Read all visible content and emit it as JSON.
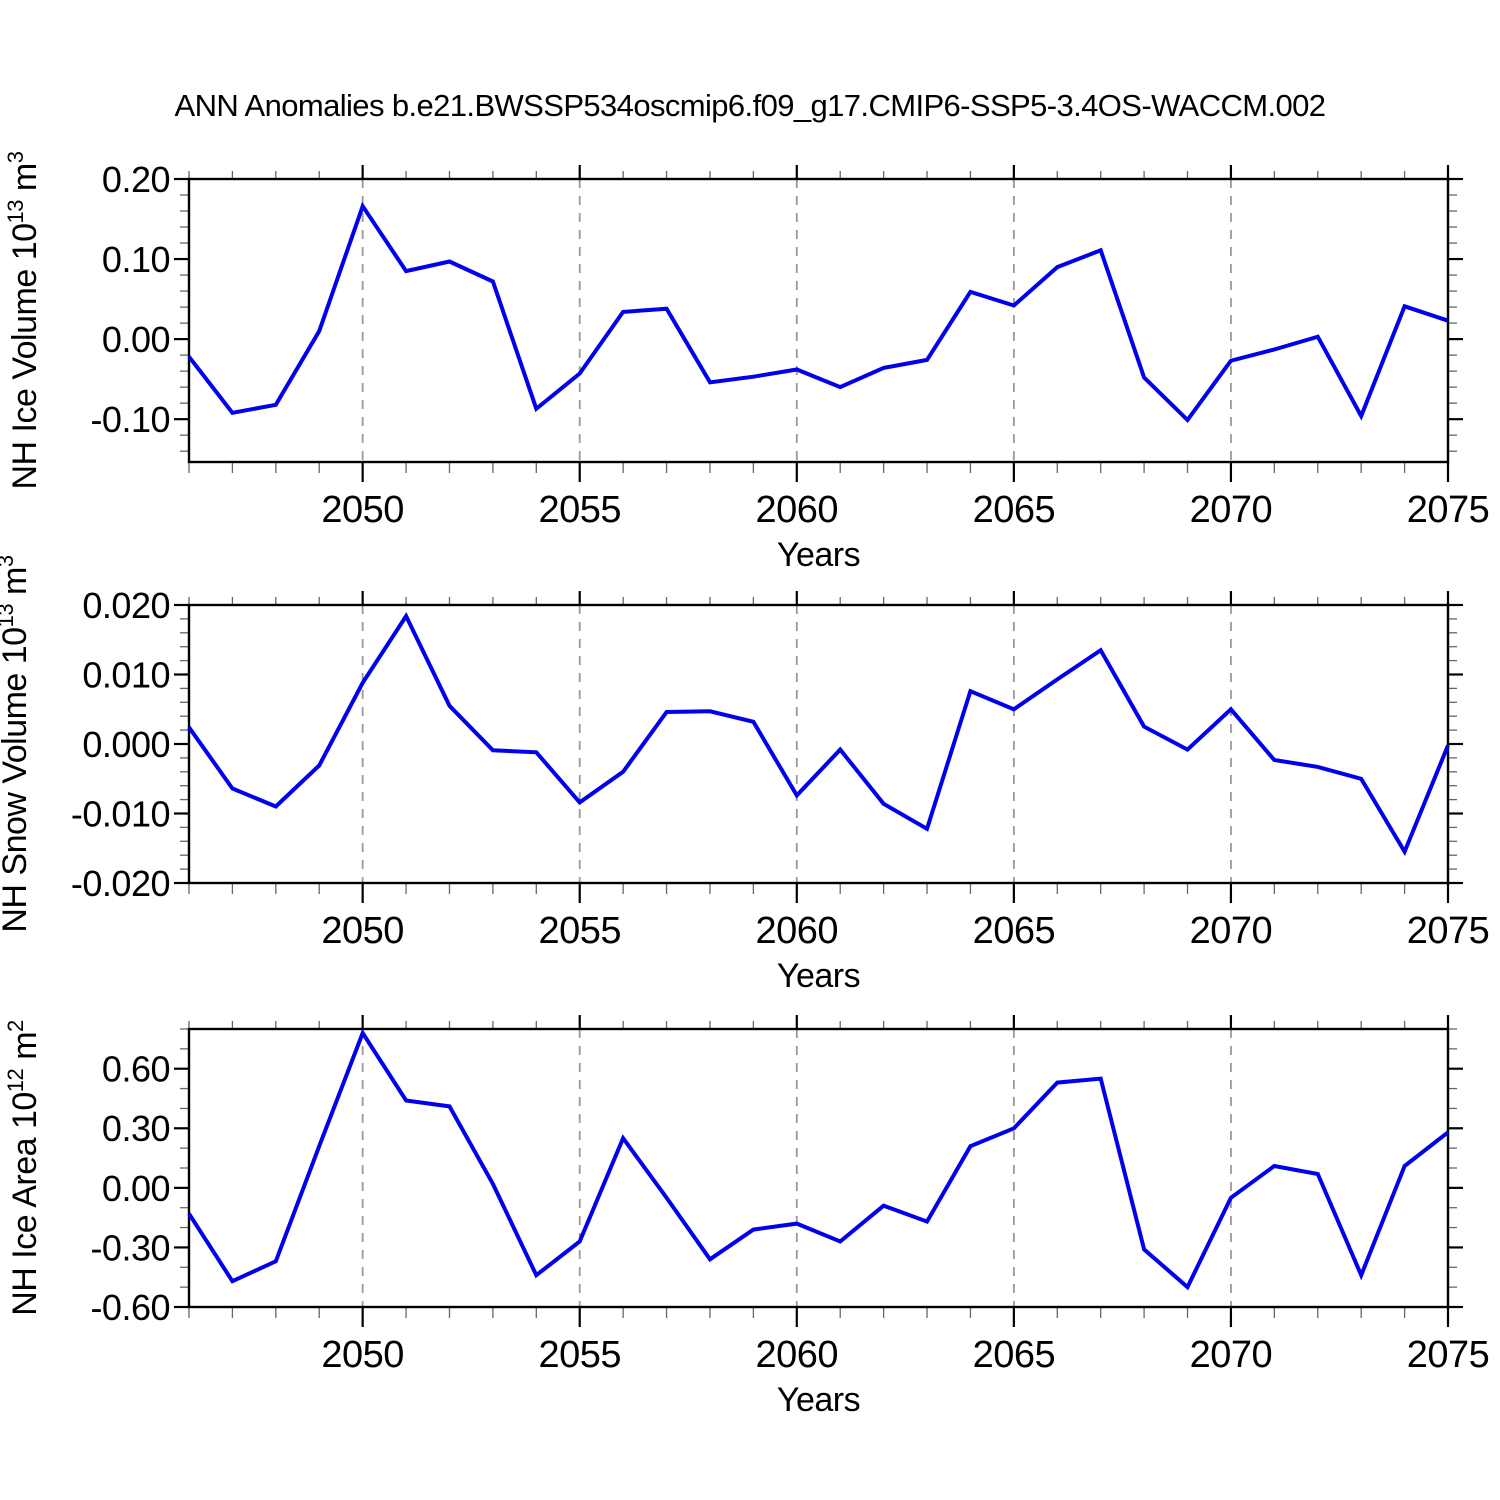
{
  "title": "ANN Anomalies b.e21.BWSSP534oscmip6.f09_g17.CMIP6-SSP5-3.4OS-WACCM.002",
  "colors": {
    "line": "#0000EE",
    "frame": "#000000",
    "grid": "#999999",
    "major_tick": "#000000",
    "minor_tick": "#666666"
  },
  "chart_data": [
    {
      "type": "line",
      "id": "ice-volume",
      "ylabel": "NH Ice Volume 10^13 m^3",
      "ylabel_segments": [
        {
          "t": "NH Ice Volume 10"
        },
        {
          "t": "13",
          "sup": true
        },
        {
          "t": " m"
        },
        {
          "t": "3",
          "sup": true
        }
      ],
      "xlabel": "Years",
      "x": [
        2046,
        2047,
        2048,
        2049,
        2050,
        2051,
        2052,
        2053,
        2054,
        2055,
        2056,
        2057,
        2058,
        2059,
        2060,
        2061,
        2062,
        2063,
        2064,
        2065,
        2066,
        2067,
        2068,
        2069,
        2070,
        2071,
        2072,
        2073,
        2074,
        2075
      ],
      "values": [
        -0.022,
        -0.092,
        -0.082,
        0.01,
        0.166,
        0.085,
        0.097,
        0.072,
        -0.087,
        -0.043,
        0.034,
        0.038,
        -0.054,
        -0.047,
        -0.038,
        -0.06,
        -0.036,
        -0.026,
        0.059,
        0.042,
        0.09,
        0.111,
        -0.048,
        -0.101,
        -0.027,
        -0.013,
        0.003,
        -0.096,
        0.041,
        0.023
      ],
      "xlim": [
        2046,
        2075
      ],
      "ylim": [
        -0.1535,
        0.2
      ],
      "yticks": {
        "labels": [
          "0.20",
          "0.10",
          "0.00",
          "-0.10"
        ],
        "values": [
          0.2,
          0.1,
          0.0,
          -0.1
        ]
      },
      "y_minor_step": 0.02,
      "xticks": {
        "labels": [
          "2050",
          "2055",
          "2060",
          "2065",
          "2070",
          "2075"
        ],
        "values": [
          2050,
          2055,
          2060,
          2065,
          2070,
          2075
        ]
      },
      "x_minor_step": 1,
      "grid_x": [
        2050,
        2055,
        2060,
        2065,
        2070
      ],
      "grid_style": "dashed"
    },
    {
      "type": "line",
      "id": "snow-volume",
      "ylabel": "NH Snow Volume 10^13 m^3",
      "ylabel_segments": [
        {
          "t": "NH Snow Volume 10"
        },
        {
          "t": "13",
          "sup": true
        },
        {
          "t": " m"
        },
        {
          "t": "3",
          "sup": true
        }
      ],
      "xlabel": "Years",
      "x": [
        2046,
        2047,
        2048,
        2049,
        2050,
        2051,
        2052,
        2053,
        2054,
        2055,
        2056,
        2057,
        2058,
        2059,
        2060,
        2061,
        2062,
        2063,
        2064,
        2065,
        2066,
        2067,
        2068,
        2069,
        2070,
        2071,
        2072,
        2073,
        2074,
        2075
      ],
      "values": [
        0.0024,
        -0.0064,
        -0.009,
        -0.0031,
        0.0088,
        0.0184,
        0.0055,
        -0.0009,
        -0.0012,
        -0.0084,
        -0.004,
        0.0046,
        0.0047,
        0.0032,
        -0.0074,
        -0.0008,
        -0.0086,
        -0.0122,
        0.0076,
        0.005,
        0.0093,
        0.0135,
        0.0025,
        -0.0008,
        0.005,
        -0.0023,
        -0.0033,
        -0.005,
        -0.0155,
        -0.0002
      ],
      "xlim": [
        2046,
        2075
      ],
      "ylim": [
        -0.02,
        0.02
      ],
      "yticks": {
        "labels": [
          "0.020",
          "0.010",
          "0.000",
          "-0.010",
          "-0.020"
        ],
        "values": [
          0.02,
          0.01,
          0.0,
          -0.01,
          -0.02
        ]
      },
      "y_minor_step": 0.002,
      "xticks": {
        "labels": [
          "2050",
          "2055",
          "2060",
          "2065",
          "2070",
          "2075"
        ],
        "values": [
          2050,
          2055,
          2060,
          2065,
          2070,
          2075
        ]
      },
      "x_minor_step": 1,
      "grid_x": [
        2050,
        2055,
        2060,
        2065,
        2070
      ],
      "grid_style": "dashed"
    },
    {
      "type": "line",
      "id": "ice-area",
      "ylabel": "NH Ice Area 10^12 m^2",
      "ylabel_segments": [
        {
          "t": "NH Ice Area 10"
        },
        {
          "t": "12",
          "sup": true
        },
        {
          "t": " m"
        },
        {
          "t": "2",
          "sup": true
        }
      ],
      "xlabel": "Years",
      "x": [
        2046,
        2047,
        2048,
        2049,
        2050,
        2051,
        2052,
        2053,
        2054,
        2055,
        2056,
        2057,
        2058,
        2059,
        2060,
        2061,
        2062,
        2063,
        2064,
        2065,
        2066,
        2067,
        2068,
        2069,
        2070,
        2071,
        2072,
        2073,
        2074,
        2075
      ],
      "values": [
        -0.13,
        -0.47,
        -0.37,
        0.21,
        0.78,
        0.44,
        0.41,
        0.02,
        -0.44,
        -0.27,
        0.25,
        -0.05,
        -0.36,
        -0.21,
        -0.18,
        -0.27,
        -0.09,
        -0.17,
        0.21,
        0.3,
        0.53,
        0.55,
        -0.31,
        -0.5,
        -0.05,
        0.11,
        0.07,
        -0.44,
        0.11,
        0.28
      ],
      "xlim": [
        2046,
        2075
      ],
      "ylim": [
        -0.6,
        0.8
      ],
      "yticks": {
        "labels": [
          "0.60",
          "0.30",
          "0.00",
          "-0.30",
          "-0.60"
        ],
        "values": [
          0.6,
          0.3,
          0.0,
          -0.3,
          -0.6
        ]
      },
      "y_minor_step": 0.1,
      "xticks": {
        "labels": [
          "2050",
          "2055",
          "2060",
          "2065",
          "2070",
          "2075"
        ],
        "values": [
          2050,
          2055,
          2060,
          2065,
          2070,
          2075
        ]
      },
      "x_minor_step": 1,
      "grid_x": [
        2050,
        2055,
        2060,
        2065,
        2070
      ],
      "grid_style": "dashed"
    }
  ]
}
